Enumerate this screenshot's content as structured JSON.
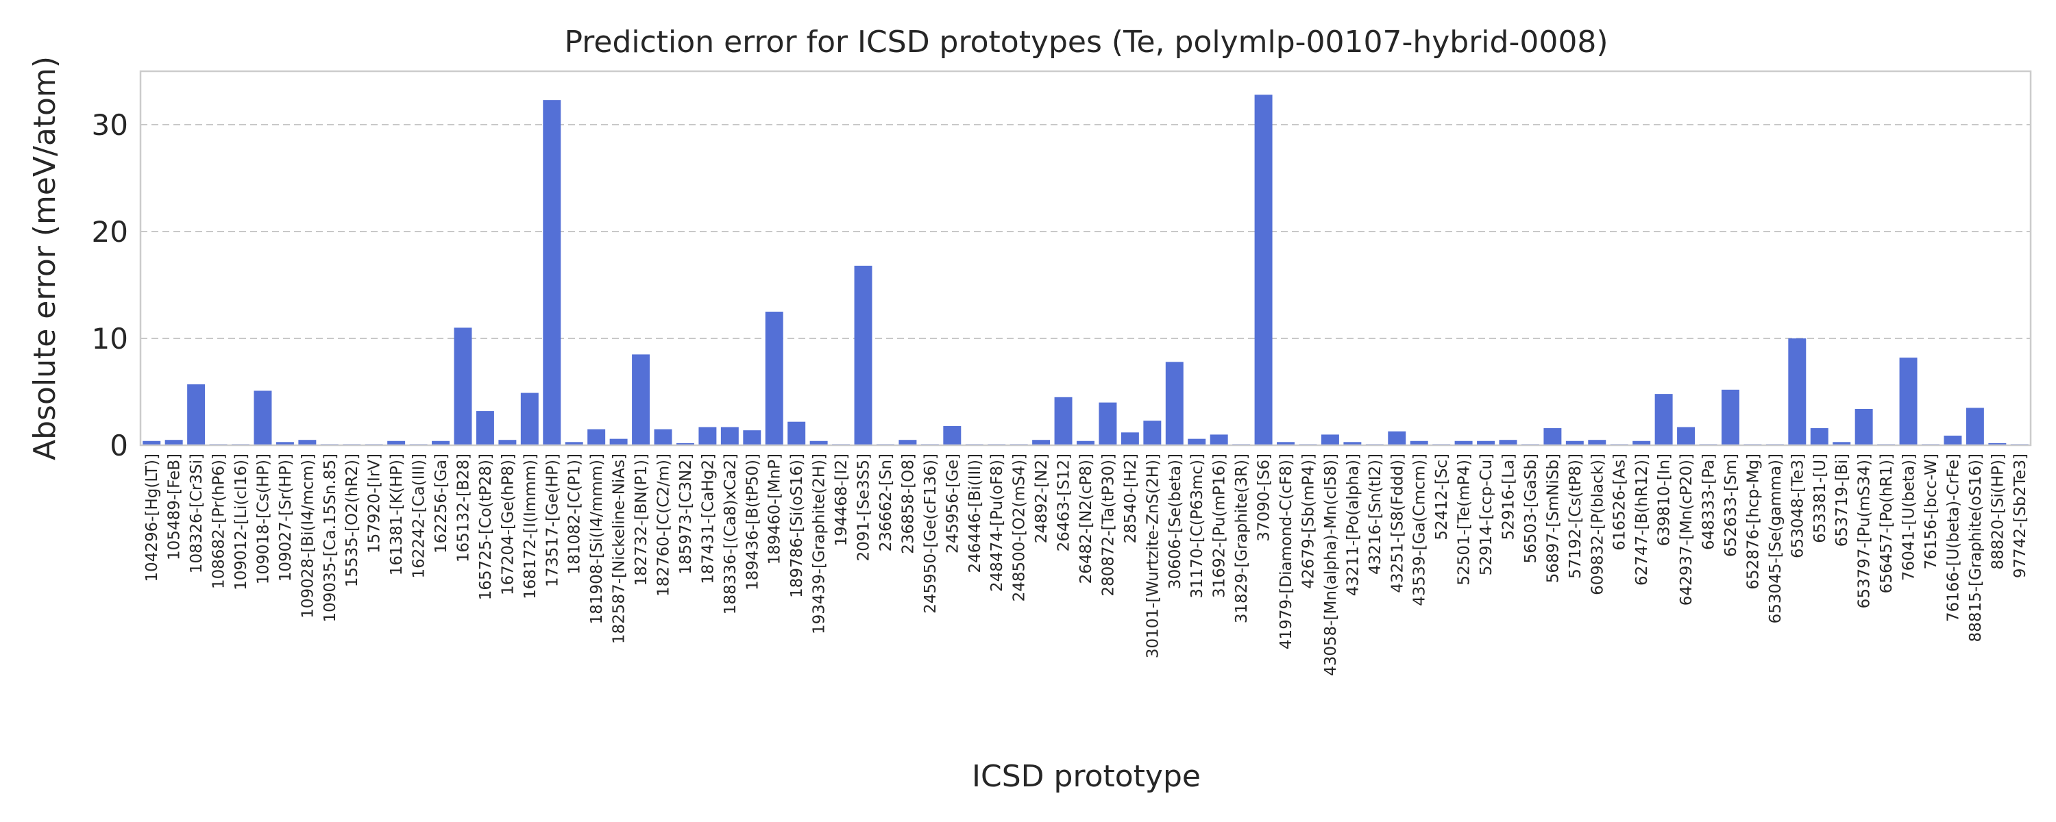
{
  "chart_data": {
    "type": "bar",
    "title": "Prediction error for ICSD prototypes (Te, polymlp-00107-hybrid-0008)",
    "xlabel": "ICSD prototype",
    "ylabel": "Absolute error (meV/atom)",
    "ylim": [
      0,
      35
    ],
    "yticks": [
      0,
      10,
      20,
      30
    ],
    "grid": "y-dashed",
    "color": "#5470d6",
    "categories": [
      "104296-[Hg(LT)]",
      "105489-[FeB]",
      "108326-[Cr3Si]",
      "108682-[Pr(hP6)]",
      "109012-[Li(cI16)]",
      "109018-[Cs(HP)]",
      "109027-[Sr(HP)]",
      "109028-[Bi(I4/mcm)]",
      "109035-[Ca.15Sn.85]",
      "15535-[O2(hR2)]",
      "157920-[IrV]",
      "161381-[K(HP)]",
      "162242-[Ca(III)]",
      "162256-[Ga]",
      "165132-[B28]",
      "165725-[Co(tP28)]",
      "167204-[Ge(hP8)]",
      "168172-[I(Immm)]",
      "173517-[Ge(HP)]",
      "181082-[C(P1)]",
      "181908-[Si(I4/mmm)]",
      "182587-[Nickeline-NiAs]",
      "182732-[BN(P1)]",
      "182760-[C(C2/m)]",
      "185973-[C3N2]",
      "187431-[CaHg2]",
      "188336-[(Ca8)xCa2]",
      "189436-[B(tP50)]",
      "189460-[MnP]",
      "189786-[Si(oS16)]",
      "193439-[Graphite(2H)]",
      "194468-[I2]",
      "2091-[Se3S5]",
      "236662-[Sn]",
      "236858-[O8]",
      "245950-[Ge(cF136)]",
      "245956-[Ge]",
      "246446-[Bi(III)]",
      "248474-[Pu(oF8)]",
      "248500-[O2(mS4)]",
      "24892-[N2]",
      "26463-[S12]",
      "26482-[N2(cP8)]",
      "280872-[Ta(tP30)]",
      "28540-[H2]",
      "30101-[Wurtzite-ZnS(2H)]",
      "30606-[Se(beta)]",
      "31170-[C(P63mc)]",
      "31692-[Pu(mP16)]",
      "31829-[Graphite(3R)]",
      "37090-[S6]",
      "41979-[Diamond-C(cF8)]",
      "42679-[Sb(mP4)]",
      "43058-[Mn(alpha)-Mn(cI58)]",
      "43211-[Po(alpha)]",
      "43216-[Sn(tI2)]",
      "43251-[S8(Fddd)]",
      "43539-[Ga(Cmcm)]",
      "52412-[Sc]",
      "52501-[Te(mP4)]",
      "52914-[ccp-Cu]",
      "52916-[La]",
      "56503-[GaSb]",
      "56897-[SmNiSb]",
      "57192-[Cs(tP8)]",
      "609832-[P(black)]",
      "616526-[As]",
      "62747-[B(hR12)]",
      "639810-[In]",
      "642937-[Mn(cP20)]",
      "648333-[Pa]",
      "652633-[Sm]",
      "652876-[hcp-Mg]",
      "653045-[Se(gamma)]",
      "653048-[Te3]",
      "653381-[U]",
      "653719-[Bi]",
      "653797-[Pu(mS34)]",
      "656457-[Po(hR1)]",
      "76041-[U(beta)]",
      "76156-[bcc-W]",
      "76166-[U(beta)-CrFe]",
      "88815-[Graphite(oS16)]",
      "88820-[Si(HP)]",
      "97742-[Sb2Te3]"
    ],
    "values": [
      0.4,
      0.5,
      5.7,
      0.1,
      0.1,
      5.1,
      0.3,
      0.5,
      0.1,
      0.1,
      0.1,
      0.4,
      0.1,
      0.4,
      11.0,
      3.2,
      0.5,
      4.9,
      32.3,
      0.3,
      1.5,
      0.6,
      8.5,
      1.5,
      0.2,
      1.7,
      1.7,
      1.4,
      12.5,
      2.2,
      0.4,
      0.1,
      16.8,
      0.1,
      0.5,
      0.1,
      1.8,
      0.1,
      0.1,
      0.1,
      0.5,
      4.5,
      0.4,
      4.0,
      1.2,
      2.3,
      7.8,
      0.6,
      1.0,
      0.1,
      32.8,
      0.3,
      0.1,
      1.0,
      0.3,
      0.1,
      1.3,
      0.4,
      0.1,
      0.4,
      0.4,
      0.5,
      0.1,
      1.6,
      0.4,
      0.5,
      0.1,
      0.4,
      4.8,
      1.7,
      0.1,
      5.2,
      0.1,
      0.1,
      10.0,
      1.6,
      0.3,
      3.4,
      0.1,
      8.2,
      0.1,
      0.9,
      3.5,
      0.2,
      0.1
    ]
  }
}
